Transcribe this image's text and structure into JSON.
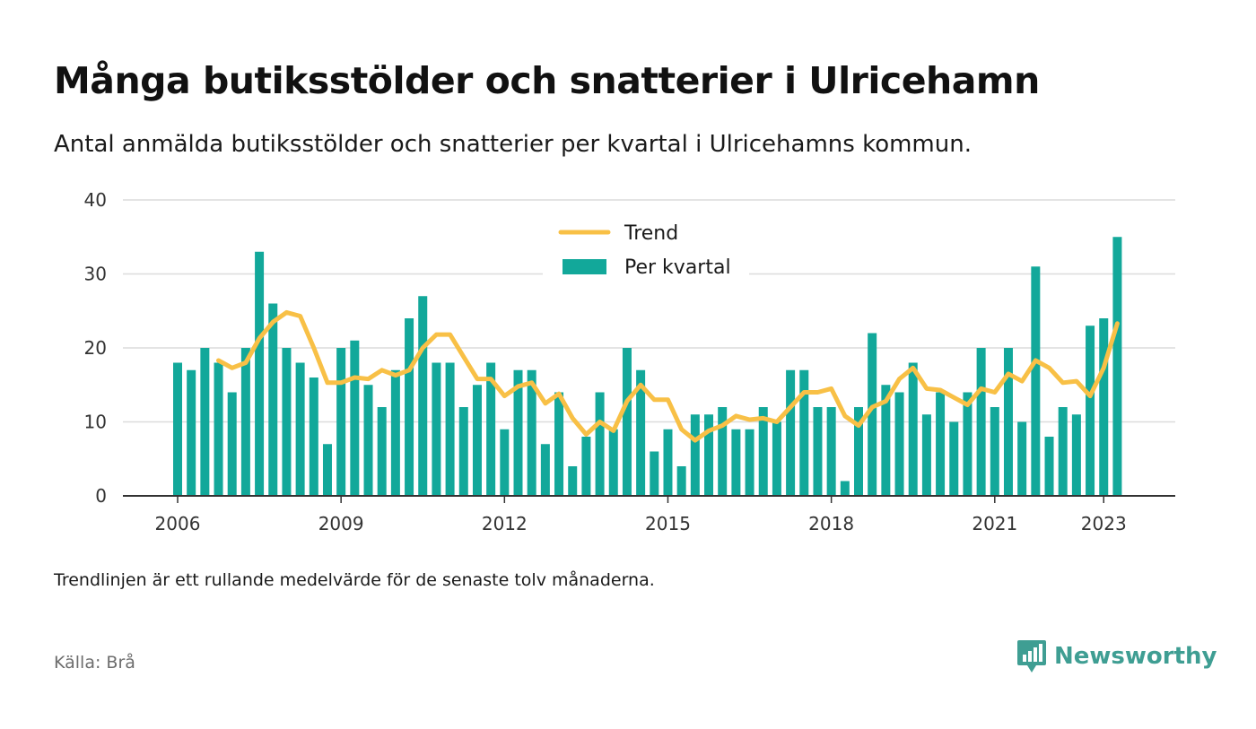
{
  "header": {
    "title": "Många butiksstölder och snatterier i Ulricehamn",
    "subtitle": "Antal anmälda butiksstölder och snatterier per kvartal i Ulricehamns kommun."
  },
  "footer": {
    "note": "Trendlinjen är ett rullande medelvärde för de senaste tolv månaderna.",
    "source": "Källa: Brå",
    "brand": "Newsworthy"
  },
  "colors": {
    "bars": "#12a89a",
    "trend": "#f8c046",
    "grid": "#dcdcdc",
    "axis": "#333333",
    "brand": "#3f9e93"
  },
  "chart_data": {
    "type": "bar",
    "title": "Många butiksstölder och snatterier i Ulricehamn",
    "subtitle": "Antal anmälda butiksstölder och snatterier per kvartal i Ulricehamns kommun.",
    "xlabel": "",
    "ylabel": "",
    "ylim": [
      0,
      40
    ],
    "yticks": [
      0,
      10,
      20,
      30,
      40
    ],
    "xticks": [
      {
        "label": "2006",
        "x": 2006.0
      },
      {
        "label": "2009",
        "x": 2009.0
      },
      {
        "label": "2012",
        "x": 2012.0
      },
      {
        "label": "2015",
        "x": 2015.0
      },
      {
        "label": "2018",
        "x": 2018.0
      },
      {
        "label": "2021",
        "x": 2021.0
      },
      {
        "label": "2023",
        "x": 2023.0
      }
    ],
    "grid": "horizontal",
    "legend": {
      "placement": "top-center",
      "entries": [
        "Trend",
        "Per kvartal"
      ]
    },
    "start_year": 2006,
    "series": [
      {
        "name": "Per kvartal",
        "type": "bar",
        "values": [
          18,
          17,
          20,
          18,
          14,
          20,
          33,
          26,
          20,
          18,
          16,
          7,
          20,
          21,
          15,
          12,
          17,
          24,
          27,
          18,
          18,
          12,
          15,
          18,
          9,
          17,
          17,
          7,
          14,
          4,
          8,
          14,
          9,
          20,
          17,
          6,
          9,
          4,
          11,
          11,
          12,
          9,
          9,
          12,
          10,
          17,
          17,
          12,
          12,
          2,
          12,
          22,
          15,
          14,
          18,
          11,
          14,
          10,
          14,
          20,
          12,
          20,
          10,
          31,
          8,
          12,
          11,
          23,
          24,
          35
        ]
      },
      {
        "name": "Trend",
        "type": "line",
        "values": [
          null,
          null,
          null,
          18.3,
          17.3,
          18.0,
          21.3,
          23.5,
          24.8,
          24.3,
          20.0,
          15.3,
          15.3,
          16.0,
          15.8,
          17.0,
          16.3,
          17.0,
          20.0,
          21.8,
          21.8,
          18.8,
          15.8,
          15.8,
          13.5,
          14.8,
          15.3,
          12.5,
          13.8,
          10.5,
          8.3,
          10.0,
          8.8,
          12.8,
          15.0,
          13.0,
          13.0,
          9.0,
          7.5,
          8.8,
          9.5,
          10.8,
          10.3,
          10.5,
          10.0,
          12.0,
          14.0,
          14.0,
          14.5,
          10.8,
          9.5,
          12.0,
          12.8,
          15.8,
          17.3,
          14.5,
          14.3,
          13.3,
          12.3,
          14.5,
          14.0,
          16.5,
          15.5,
          18.3,
          17.3,
          15.3,
          15.5,
          13.5,
          17.3,
          23.3
        ]
      }
    ]
  }
}
